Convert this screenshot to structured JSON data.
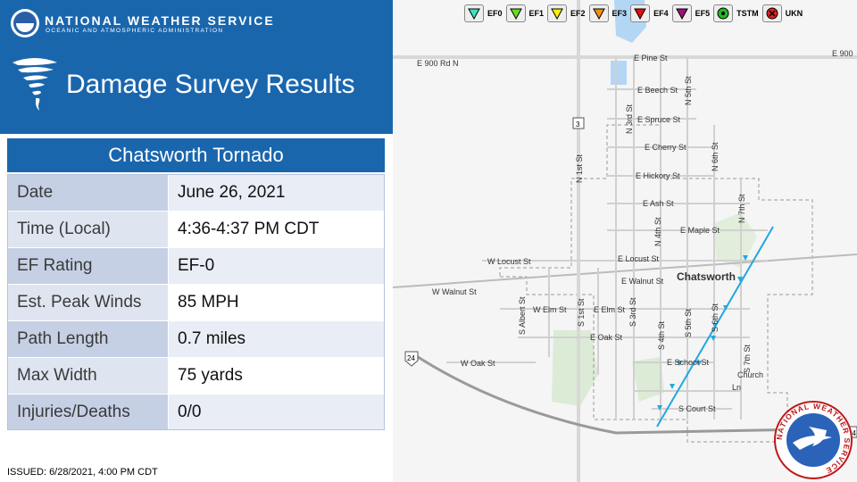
{
  "header": {
    "org_name": "NATIONAL WEATHER SERVICE",
    "org_sub": "OCEANIC AND ATMOSPHERIC ADMINISTRATION",
    "title": "Damage Survey Results",
    "logo_icon": "noaa-logo-icon",
    "title_icon": "tornado-icon"
  },
  "event": {
    "title": "Chatsworth Tornado",
    "rows": [
      {
        "label": "Date",
        "value": "June 26, 2021"
      },
      {
        "label": "Time (Local)",
        "value": "4:36-4:37 PM CDT"
      },
      {
        "label": "EF Rating",
        "value": "EF-0"
      },
      {
        "label": "Est. Peak Winds",
        "value": "85 MPH"
      },
      {
        "label": "Path Length",
        "value": "0.7 miles"
      },
      {
        "label": "Max Width",
        "value": "75 yards"
      },
      {
        "label": "Injuries/Deaths",
        "value": "0/0"
      }
    ]
  },
  "issued": "ISSUED: 6/28/2021, 4:00 PM CDT",
  "legend": [
    {
      "label": "EF0",
      "color": "#40e0c0",
      "shape": "triangle"
    },
    {
      "label": "EF1",
      "color": "#66dd22",
      "shape": "triangle"
    },
    {
      "label": "EF2",
      "color": "#ffee00",
      "shape": "triangle"
    },
    {
      "label": "EF3",
      "color": "#f09010",
      "shape": "triangle"
    },
    {
      "label": "EF4",
      "color": "#e01010",
      "shape": "triangle"
    },
    {
      "label": "EF5",
      "color": "#a0107a",
      "shape": "triangle"
    },
    {
      "label": "TSTM",
      "color": "#22bb22",
      "shape": "circle"
    },
    {
      "label": "UKN",
      "color": "#e02020",
      "shape": "cross-circle"
    }
  ],
  "map": {
    "town_label": "Chatsworth",
    "route_shield_1": "3",
    "route_shield_2": "24",
    "route_shield_3": "24",
    "streets": [
      "E 900 Rd N",
      "E 900",
      "E Pine St",
      "E Beech St",
      "E Spruce St",
      "E Cherry St",
      "E Hickory St",
      "E Ash St",
      "E Maple St",
      "W Locust St",
      "E Locust St",
      "W Walnut St",
      "E Walnut St",
      "W Elm St",
      "E Elm St",
      "E Oak St",
      "W Oak St",
      "E School St",
      "S Court St",
      "N 1st St",
      "N 3rd St",
      "N 4th St",
      "N 5th St",
      "N 6th St",
      "N 7th St",
      "S Albert St",
      "S 1st St",
      "S 3rd St",
      "S 4th St",
      "S 5th St",
      "S 6th St",
      "S 7th St",
      "Church",
      "Ln"
    ],
    "track_color": "#1fa8e0",
    "seal_text": "NATIONAL WEATHER SERVICE",
    "seal_icon": "nws-seal-icon"
  }
}
